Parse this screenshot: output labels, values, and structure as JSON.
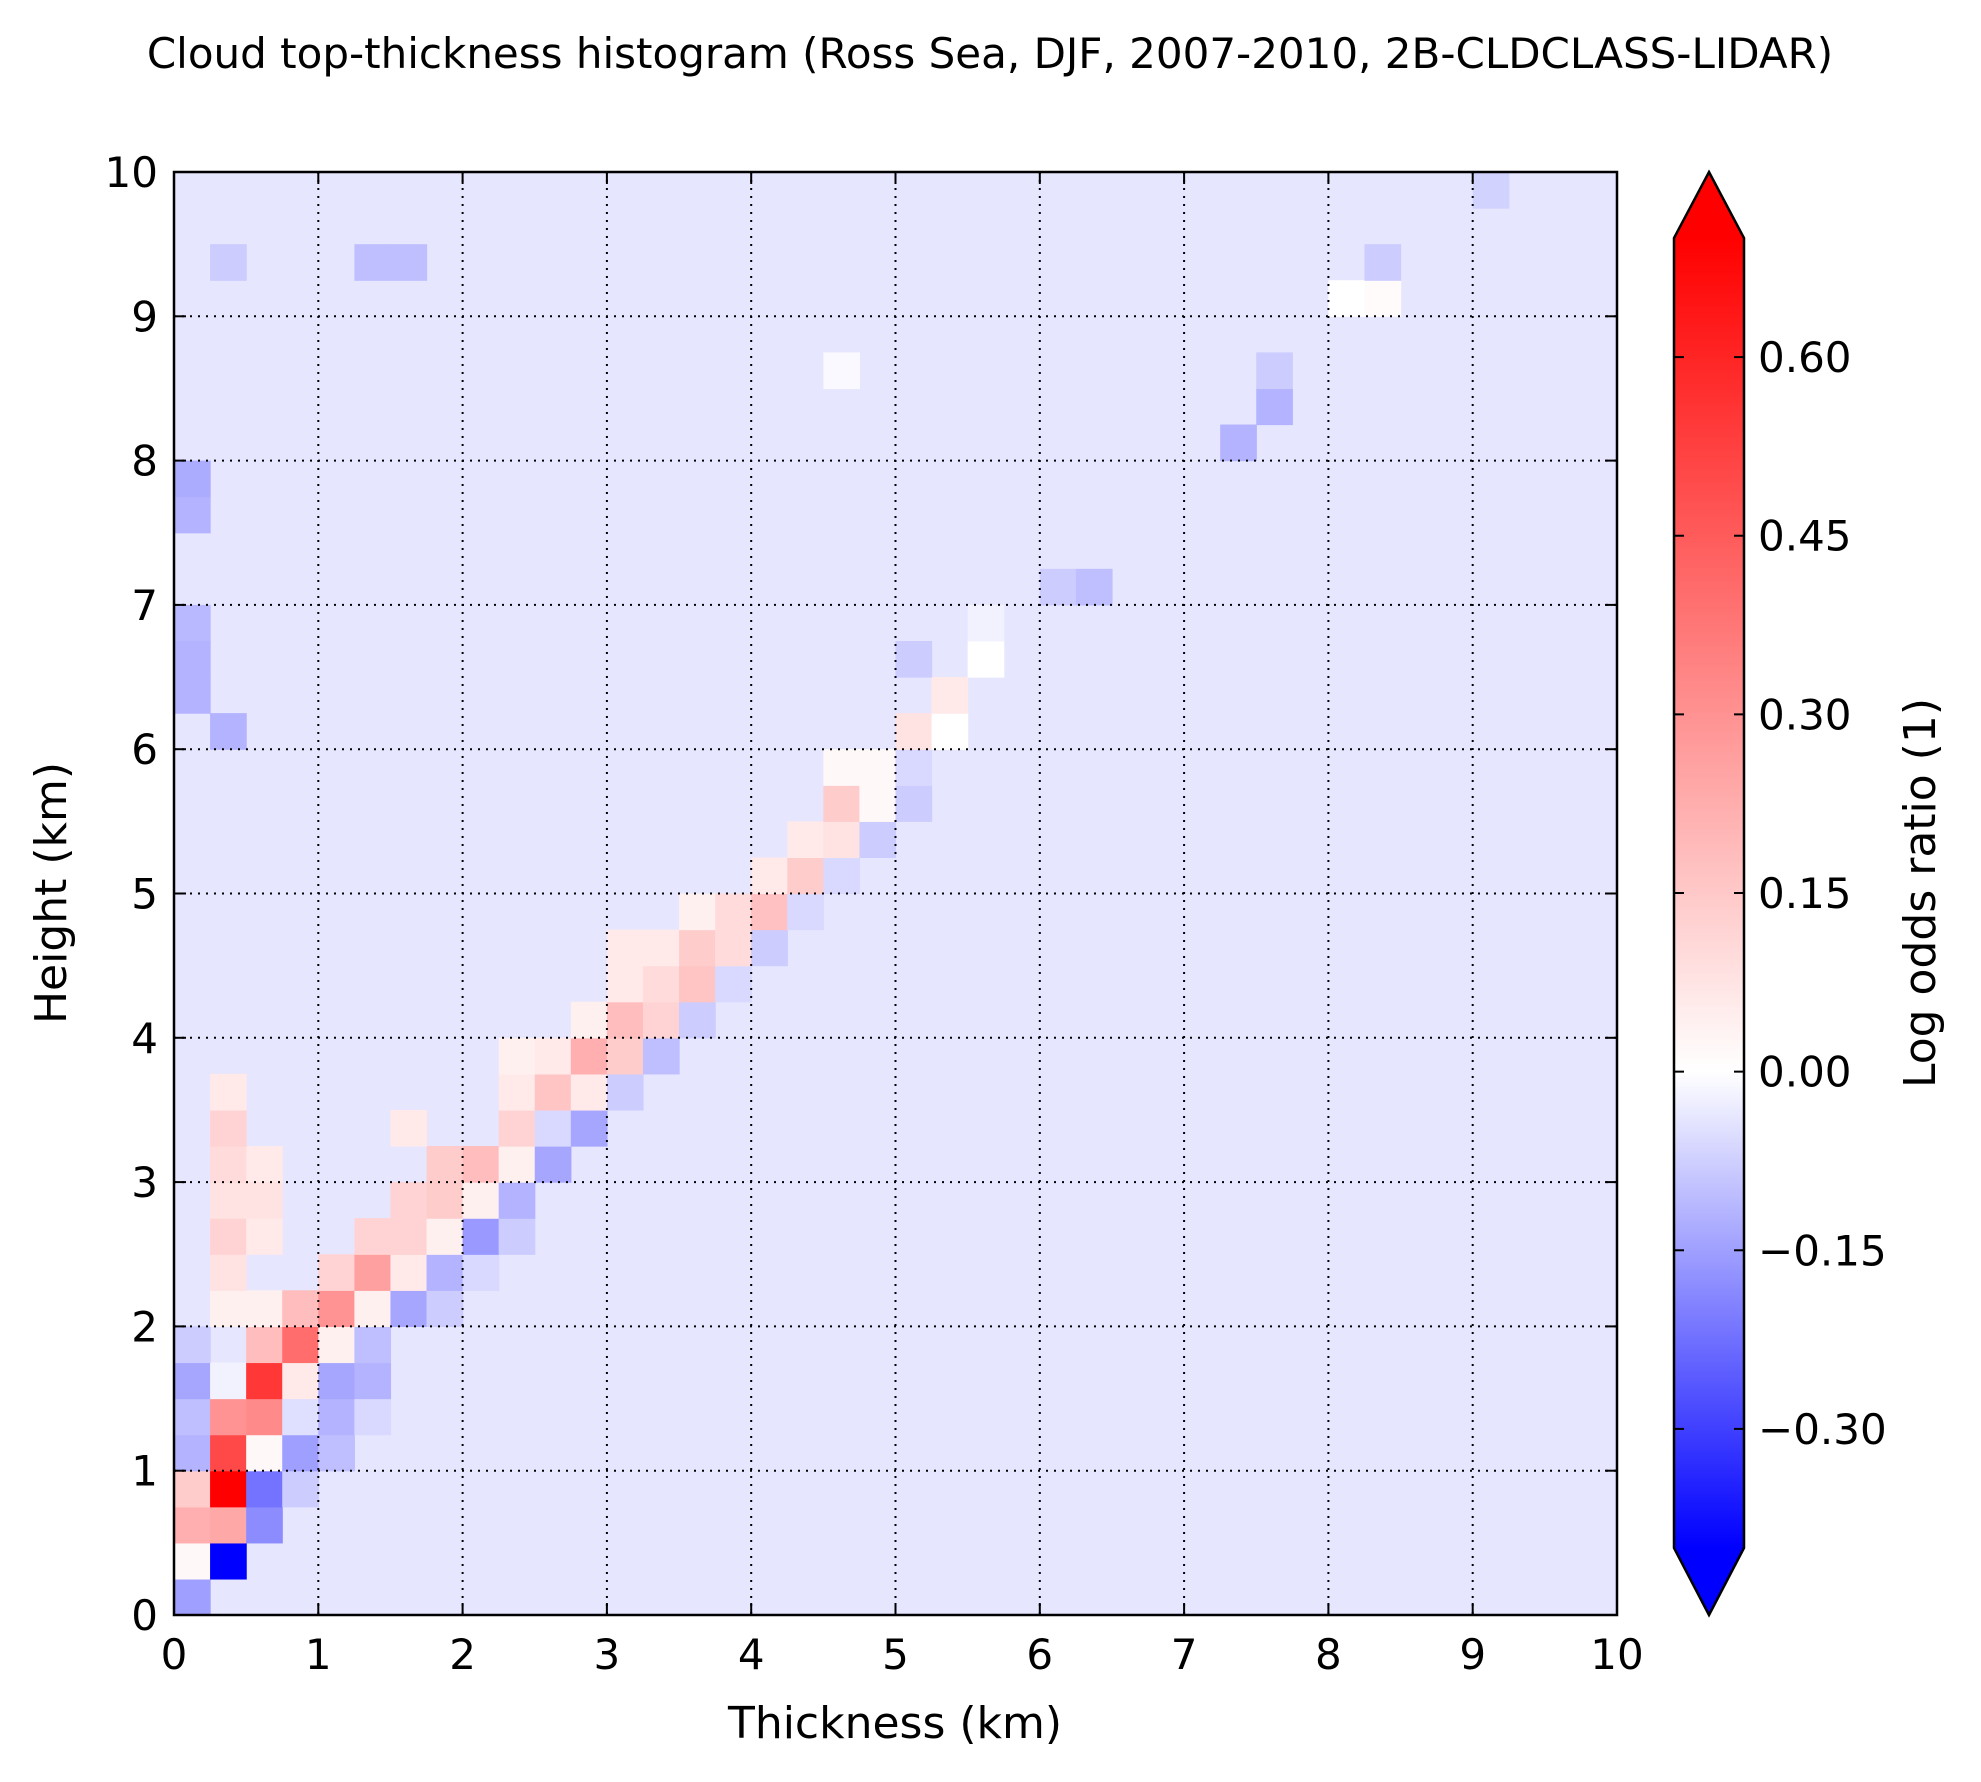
{
  "chart_data": {
    "type": "heatmap",
    "title": "Cloud top-thickness histogram (Ross Sea, DJF, 2007-2010, 2B-CLDCLASS-LIDAR)",
    "xlabel": "Thickness (km)",
    "ylabel": "Height (km)",
    "xlim": [
      0,
      10
    ],
    "ylim": [
      0,
      10
    ],
    "xticks": [
      "0",
      "1",
      "2",
      "3",
      "4",
      "5",
      "6",
      "7",
      "8",
      "9",
      "10"
    ],
    "yticks": [
      "0",
      "1",
      "2",
      "3",
      "4",
      "5",
      "6",
      "7",
      "8",
      "9",
      "10"
    ],
    "grid": true,
    "bin_size_km": 0.25,
    "background_value": -0.04,
    "colorbar": {
      "label": "Log odds ratio (1)",
      "range": [
        -0.4,
        0.7
      ],
      "extend": "both",
      "ticks": [
        -0.3,
        -0.15,
        0.0,
        0.15,
        0.3,
        0.45,
        0.6
      ],
      "tick_labels": [
        "−0.30",
        "−0.15",
        "0.00",
        "0.15",
        "0.30",
        "0.45",
        "0.60"
      ],
      "colormap": "bwr",
      "colors": {
        "low": "#0000ff",
        "mid": "#ffffff",
        "high": "#ff0000"
      }
    },
    "cells": [
      {
        "x": 0.125,
        "y": 0.125,
        "v": -0.15
      },
      {
        "x": 0.125,
        "y": 0.375,
        "v": 0.02
      },
      {
        "x": 0.375,
        "y": 0.375,
        "v": -0.4
      },
      {
        "x": 0.125,
        "y": 0.625,
        "v": 0.22
      },
      {
        "x": 0.375,
        "y": 0.625,
        "v": 0.24
      },
      {
        "x": 0.625,
        "y": 0.625,
        "v": -0.18
      },
      {
        "x": 0.125,
        "y": 0.875,
        "v": 0.14
      },
      {
        "x": 0.375,
        "y": 0.875,
        "v": 0.75
      },
      {
        "x": 0.625,
        "y": 0.875,
        "v": -0.22
      },
      {
        "x": 0.875,
        "y": 0.875,
        "v": -0.08
      },
      {
        "x": 0.125,
        "y": 1.125,
        "v": -0.12
      },
      {
        "x": 0.375,
        "y": 1.125,
        "v": 0.5
      },
      {
        "x": 0.625,
        "y": 1.125,
        "v": 0.02
      },
      {
        "x": 0.875,
        "y": 1.125,
        "v": -0.15
      },
      {
        "x": 1.125,
        "y": 1.125,
        "v": -0.1
      },
      {
        "x": 0.125,
        "y": 1.375,
        "v": -0.1
      },
      {
        "x": 0.375,
        "y": 1.375,
        "v": 0.3
      },
      {
        "x": 0.625,
        "y": 1.375,
        "v": 0.32
      },
      {
        "x": 0.875,
        "y": 1.375,
        "v": -0.05
      },
      {
        "x": 1.125,
        "y": 1.375,
        "v": -0.12
      },
      {
        "x": 1.375,
        "y": 1.375,
        "v": -0.06
      },
      {
        "x": 0.125,
        "y": 1.625,
        "v": -0.14
      },
      {
        "x": 0.375,
        "y": 1.625,
        "v": -0.02
      },
      {
        "x": 0.625,
        "y": 1.625,
        "v": 0.55
      },
      {
        "x": 0.875,
        "y": 1.625,
        "v": 0.06
      },
      {
        "x": 1.125,
        "y": 1.625,
        "v": -0.14
      },
      {
        "x": 1.375,
        "y": 1.625,
        "v": -0.12
      },
      {
        "x": 0.125,
        "y": 1.875,
        "v": -0.08
      },
      {
        "x": 0.625,
        "y": 1.875,
        "v": 0.18
      },
      {
        "x": 0.875,
        "y": 1.875,
        "v": 0.4
      },
      {
        "x": 1.125,
        "y": 1.875,
        "v": 0.04
      },
      {
        "x": 1.375,
        "y": 1.875,
        "v": -0.1
      },
      {
        "x": 0.375,
        "y": 2.125,
        "v": 0.04
      },
      {
        "x": 0.625,
        "y": 2.125,
        "v": 0.04
      },
      {
        "x": 0.875,
        "y": 2.125,
        "v": 0.18
      },
      {
        "x": 1.125,
        "y": 2.125,
        "v": 0.3
      },
      {
        "x": 1.375,
        "y": 2.125,
        "v": 0.04
      },
      {
        "x": 1.625,
        "y": 2.125,
        "v": -0.14
      },
      {
        "x": 1.875,
        "y": 2.125,
        "v": -0.08
      },
      {
        "x": 0.375,
        "y": 2.375,
        "v": 0.08
      },
      {
        "x": 1.125,
        "y": 2.375,
        "v": 0.12
      },
      {
        "x": 1.375,
        "y": 2.375,
        "v": 0.26
      },
      {
        "x": 1.625,
        "y": 2.375,
        "v": 0.06
      },
      {
        "x": 1.875,
        "y": 2.375,
        "v": -0.12
      },
      {
        "x": 2.125,
        "y": 2.375,
        "v": -0.06
      },
      {
        "x": 0.375,
        "y": 2.625,
        "v": 0.12
      },
      {
        "x": 0.625,
        "y": 2.625,
        "v": 0.06
      },
      {
        "x": 1.375,
        "y": 2.625,
        "v": 0.12
      },
      {
        "x": 1.625,
        "y": 2.625,
        "v": 0.12
      },
      {
        "x": 1.875,
        "y": 2.625,
        "v": 0.04
      },
      {
        "x": 2.125,
        "y": 2.625,
        "v": -0.16
      },
      {
        "x": 2.375,
        "y": 2.625,
        "v": -0.08
      },
      {
        "x": 0.375,
        "y": 2.875,
        "v": 0.08
      },
      {
        "x": 0.625,
        "y": 2.875,
        "v": 0.08
      },
      {
        "x": 1.625,
        "y": 2.875,
        "v": 0.12
      },
      {
        "x": 1.875,
        "y": 2.875,
        "v": 0.14
      },
      {
        "x": 2.125,
        "y": 2.875,
        "v": 0.04
      },
      {
        "x": 2.375,
        "y": 2.875,
        "v": -0.12
      },
      {
        "x": 0.375,
        "y": 3.125,
        "v": 0.1
      },
      {
        "x": 0.625,
        "y": 3.125,
        "v": 0.06
      },
      {
        "x": 1.875,
        "y": 3.125,
        "v": 0.14
      },
      {
        "x": 2.125,
        "y": 3.125,
        "v": 0.18
      },
      {
        "x": 2.375,
        "y": 3.125,
        "v": 0.04
      },
      {
        "x": 2.625,
        "y": 3.125,
        "v": -0.14
      },
      {
        "x": 0.375,
        "y": 3.375,
        "v": 0.12
      },
      {
        "x": 1.625,
        "y": 3.375,
        "v": 0.06
      },
      {
        "x": 2.375,
        "y": 3.375,
        "v": 0.12
      },
      {
        "x": 2.625,
        "y": 3.375,
        "v": -0.06
      },
      {
        "x": 2.875,
        "y": 3.375,
        "v": -0.14
      },
      {
        "x": 0.375,
        "y": 3.625,
        "v": 0.06
      },
      {
        "x": 2.375,
        "y": 3.625,
        "v": 0.06
      },
      {
        "x": 2.625,
        "y": 3.625,
        "v": 0.16
      },
      {
        "x": 2.875,
        "y": 3.625,
        "v": 0.06
      },
      {
        "x": 3.125,
        "y": 3.625,
        "v": -0.08
      },
      {
        "x": 2.375,
        "y": 3.875,
        "v": 0.04
      },
      {
        "x": 2.625,
        "y": 3.875,
        "v": 0.06
      },
      {
        "x": 2.875,
        "y": 3.875,
        "v": 0.22
      },
      {
        "x": 3.125,
        "y": 3.875,
        "v": 0.14
      },
      {
        "x": 3.375,
        "y": 3.875,
        "v": -0.1
      },
      {
        "x": 2.875,
        "y": 4.125,
        "v": 0.04
      },
      {
        "x": 3.125,
        "y": 4.125,
        "v": 0.18
      },
      {
        "x": 3.375,
        "y": 4.125,
        "v": 0.12
      },
      {
        "x": 3.625,
        "y": 4.125,
        "v": -0.08
      },
      {
        "x": 3.125,
        "y": 4.375,
        "v": 0.06
      },
      {
        "x": 3.375,
        "y": 4.375,
        "v": 0.1
      },
      {
        "x": 3.625,
        "y": 4.375,
        "v": 0.16
      },
      {
        "x": 3.875,
        "y": 4.375,
        "v": -0.06
      },
      {
        "x": 3.125,
        "y": 4.625,
        "v": 0.06
      },
      {
        "x": 3.375,
        "y": 4.625,
        "v": 0.06
      },
      {
        "x": 3.625,
        "y": 4.625,
        "v": 0.14
      },
      {
        "x": 3.875,
        "y": 4.625,
        "v": 0.1
      },
      {
        "x": 4.125,
        "y": 4.625,
        "v": -0.08
      },
      {
        "x": 3.625,
        "y": 4.875,
        "v": 0.04
      },
      {
        "x": 3.875,
        "y": 4.875,
        "v": 0.1
      },
      {
        "x": 4.125,
        "y": 4.875,
        "v": 0.17
      },
      {
        "x": 4.375,
        "y": 4.875,
        "v": -0.06
      },
      {
        "x": 4.125,
        "y": 5.125,
        "v": 0.06
      },
      {
        "x": 4.375,
        "y": 5.125,
        "v": 0.14
      },
      {
        "x": 4.625,
        "y": 5.125,
        "v": -0.06
      },
      {
        "x": 4.375,
        "y": 5.375,
        "v": 0.06
      },
      {
        "x": 4.625,
        "y": 5.375,
        "v": 0.08
      },
      {
        "x": 4.875,
        "y": 5.375,
        "v": -0.08
      },
      {
        "x": 4.625,
        "y": 5.625,
        "v": 0.14
      },
      {
        "x": 4.875,
        "y": 5.625,
        "v": 0.02
      },
      {
        "x": 5.125,
        "y": 5.625,
        "v": -0.08
      },
      {
        "x": 4.625,
        "y": 5.875,
        "v": 0.02
      },
      {
        "x": 4.875,
        "y": 5.875,
        "v": 0.02
      },
      {
        "x": 5.125,
        "y": 5.875,
        "v": -0.06
      },
      {
        "x": 5.125,
        "y": 6.125,
        "v": 0.08
      },
      {
        "x": 5.375,
        "y": 6.125,
        "v": 0.0
      },
      {
        "x": 5.375,
        "y": 6.375,
        "v": 0.06
      },
      {
        "x": 5.125,
        "y": 6.625,
        "v": -0.08
      },
      {
        "x": 5.625,
        "y": 6.625,
        "v": 0.0
      },
      {
        "x": 5.625,
        "y": 6.875,
        "v": -0.02
      },
      {
        "x": 6.125,
        "y": 7.125,
        "v": -0.08
      },
      {
        "x": 6.375,
        "y": 7.125,
        "v": -0.1
      },
      {
        "x": 0.125,
        "y": 7.625,
        "v": -0.12
      },
      {
        "x": 0.125,
        "y": 7.875,
        "v": -0.13
      },
      {
        "x": 0.125,
        "y": 6.875,
        "v": -0.11
      },
      {
        "x": 0.125,
        "y": 6.625,
        "v": -0.12
      },
      {
        "x": 0.125,
        "y": 6.375,
        "v": -0.12
      },
      {
        "x": 0.375,
        "y": 6.125,
        "v": -0.12
      },
      {
        "x": 0.375,
        "y": 9.375,
        "v": -0.08
      },
      {
        "x": 1.375,
        "y": 9.375,
        "v": -0.1
      },
      {
        "x": 1.625,
        "y": 9.375,
        "v": -0.1
      },
      {
        "x": 4.625,
        "y": 8.625,
        "v": -0.01
      },
      {
        "x": 7.375,
        "y": 8.125,
        "v": -0.12
      },
      {
        "x": 7.625,
        "y": 8.375,
        "v": -0.12
      },
      {
        "x": 7.625,
        "y": 8.625,
        "v": -0.08
      },
      {
        "x": 8.125,
        "y": 9.125,
        "v": 0.0
      },
      {
        "x": 8.375,
        "y": 9.125,
        "v": 0.01
      },
      {
        "x": 8.375,
        "y": 9.375,
        "v": -0.08
      },
      {
        "x": 9.125,
        "y": 9.875,
        "v": -0.07
      }
    ]
  }
}
